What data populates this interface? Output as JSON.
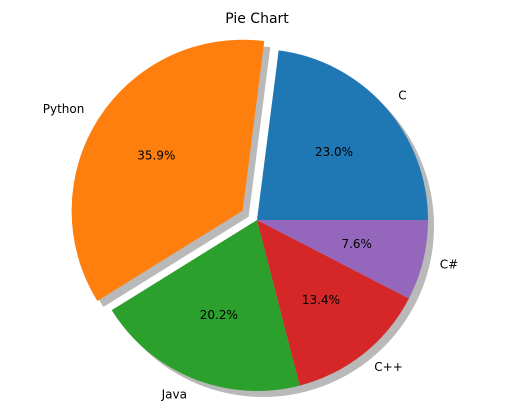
{
  "chart_data": {
    "type": "pie",
    "title": "Pie Chart",
    "categories": [
      "C",
      "Python",
      "Java",
      "C++",
      "C#"
    ],
    "values": [
      23.0,
      35.9,
      20.2,
      13.4,
      7.6
    ],
    "percent_labels": [
      "23.0%",
      "35.9%",
      "20.2%",
      "13.4%",
      "7.6%"
    ],
    "colors": [
      "#1f77b4",
      "#ff7f0e",
      "#2ca02c",
      "#d62728",
      "#9467bd"
    ],
    "explode": [
      0,
      0.1,
      0,
      0,
      0
    ],
    "shadow": true,
    "start_angle_deg": 0,
    "direction": "counterclockwise",
    "legend": "none"
  }
}
